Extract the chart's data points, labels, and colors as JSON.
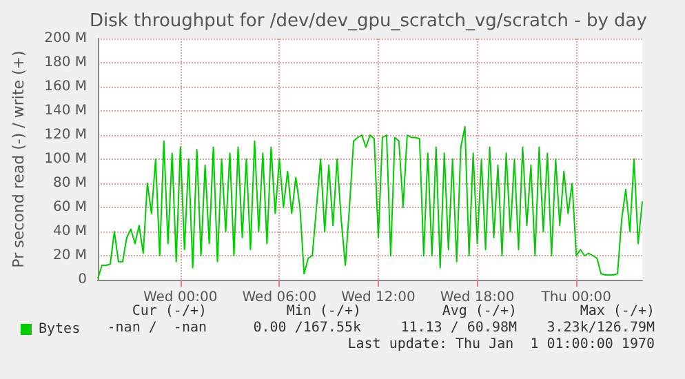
{
  "chart_data": {
    "type": "line",
    "title": "Disk throughput for /dev/dev_gpu_scratch_vg/scratch - by day",
    "ylabel": "Pr second read (-) / write (+)",
    "categories": [
      null,
      null,
      null,
      null,
      null,
      null,
      null,
      null,
      null,
      null,
      null,
      null,
      null,
      null,
      null,
      null,
      null,
      null,
      null,
      null,
      "Wed 00:00",
      null,
      null,
      null,
      null,
      null,
      null,
      null,
      null,
      null,
      null,
      null,
      null,
      null,
      null,
      null,
      null,
      null,
      null,
      null,
      null,
      null,
      null,
      null,
      "Wed 06:00",
      null,
      null,
      null,
      null,
      null,
      null,
      null,
      null,
      null,
      null,
      null,
      null,
      null,
      null,
      null,
      null,
      null,
      null,
      null,
      null,
      null,
      null,
      null,
      "Wed 12:00",
      null,
      null,
      null,
      null,
      null,
      null,
      null,
      null,
      null,
      null,
      null,
      null,
      null,
      null,
      null,
      null,
      null,
      null,
      null,
      null,
      null,
      null,
      null,
      "Wed 18:00",
      null,
      null,
      null,
      null,
      null,
      null,
      null,
      null,
      null,
      null,
      null,
      null,
      null,
      null,
      null,
      null,
      null,
      null,
      null,
      null,
      null,
      null,
      null,
      "Thu 00:00",
      null,
      null,
      null,
      null,
      null,
      null,
      null,
      null,
      null,
      null,
      null,
      null,
      null,
      null,
      null,
      null
    ],
    "series": [
      {
        "name": "Bytes",
        "color": "#00cc00",
        "values": [
          1,
          12,
          12,
          13,
          40,
          15,
          15,
          35,
          42,
          30,
          45,
          22,
          80,
          55,
          100,
          20,
          115,
          30,
          105,
          15,
          110,
          25,
          100,
          10,
          108,
          20,
          95,
          30,
          110,
          15,
          100,
          40,
          105,
          20,
          110,
          35,
          100,
          25,
          115,
          40,
          105,
          30,
          110,
          55,
          100,
          60,
          90,
          55,
          85,
          60,
          5,
          18,
          20,
          60,
          100,
          40,
          95,
          45,
          100,
          50,
          12,
          60,
          115,
          118,
          120,
          110,
          120,
          117,
          35,
          118,
          120,
          20,
          118,
          115,
          60,
          120,
          118,
          118,
          117,
          20,
          105,
          20,
          110,
          10,
          105,
          25,
          100,
          15,
          110,
          127,
          20,
          105,
          30,
          100,
          25,
          110,
          35,
          95,
          20,
          105,
          40,
          100,
          25,
          110,
          45,
          95,
          20,
          110,
          40,
          105,
          20,
          100,
          45,
          90,
          55,
          80,
          20,
          25,
          20,
          22,
          20,
          18,
          5,
          4,
          4,
          4,
          5,
          50,
          75,
          40,
          100,
          30,
          65
        ]
      }
    ],
    "ylim": [
      0,
      200
    ],
    "yticks": [
      0,
      {
        "value": 20,
        "label": "20 M"
      },
      {
        "value": 40,
        "label": "40 M"
      },
      {
        "value": 60,
        "label": "60 M"
      },
      {
        "value": 80,
        "label": "80 M"
      },
      {
        "value": 100,
        "label": "100 M"
      },
      {
        "value": 120,
        "label": "120 M"
      },
      {
        "value": 140,
        "label": "140 M"
      },
      {
        "value": 160,
        "label": "160 M"
      },
      {
        "value": 180,
        "label": "180 M"
      },
      {
        "value": 200,
        "label": "200 M"
      }
    ],
    "grid": true,
    "legend": "bottom left",
    "marker": "none",
    "line_style": "solid",
    "annotations": [
      "Cur (-/+)",
      "Min (-/+)",
      "Avg (-/+)",
      "Max (-/+)",
      "-nan /  -nan",
      "0.00 /167.55k",
      "11.13 / 60.98M",
      "3.23k/126.79M",
      "Last update: Thu Jan  1 01:00:00 1970"
    ]
  }
}
